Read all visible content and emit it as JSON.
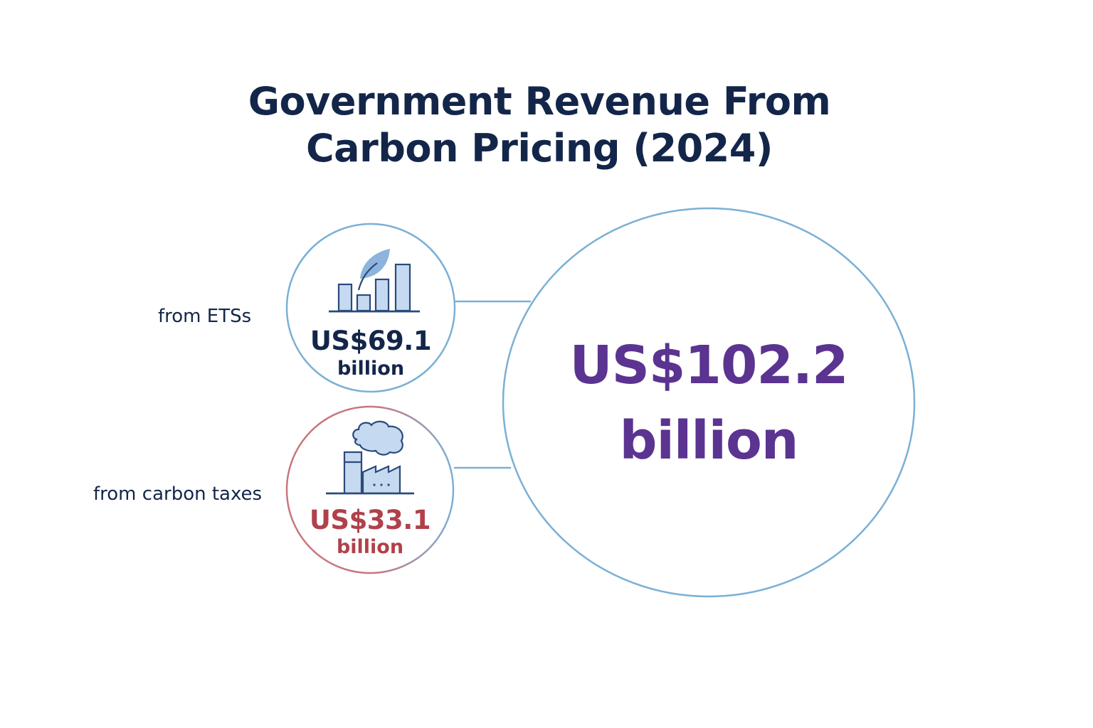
{
  "title": {
    "line1": "Government Revenue From",
    "line2": "Carbon Pricing (2024)"
  },
  "colors": {
    "title": "#13264a",
    "circle_stroke": "#7ab0d6",
    "ets_value": "#13264a",
    "tax_value": "#b0414a",
    "tax_circle_stroke": "#c9767c",
    "total_value": "#5b3390",
    "icon_fill": "#c5daf0",
    "icon_stroke": "#2c4a7c"
  },
  "ets": {
    "label": "from ETSs",
    "amount": "US$69.1",
    "unit": "billion",
    "icon": "bar-chart-leaf-icon"
  },
  "carbon_tax": {
    "label": "from carbon taxes",
    "amount": "US$33.1",
    "unit": "billion",
    "icon": "factory-smoke-icon"
  },
  "total": {
    "amount": "US$102.2",
    "unit": "billion"
  }
}
